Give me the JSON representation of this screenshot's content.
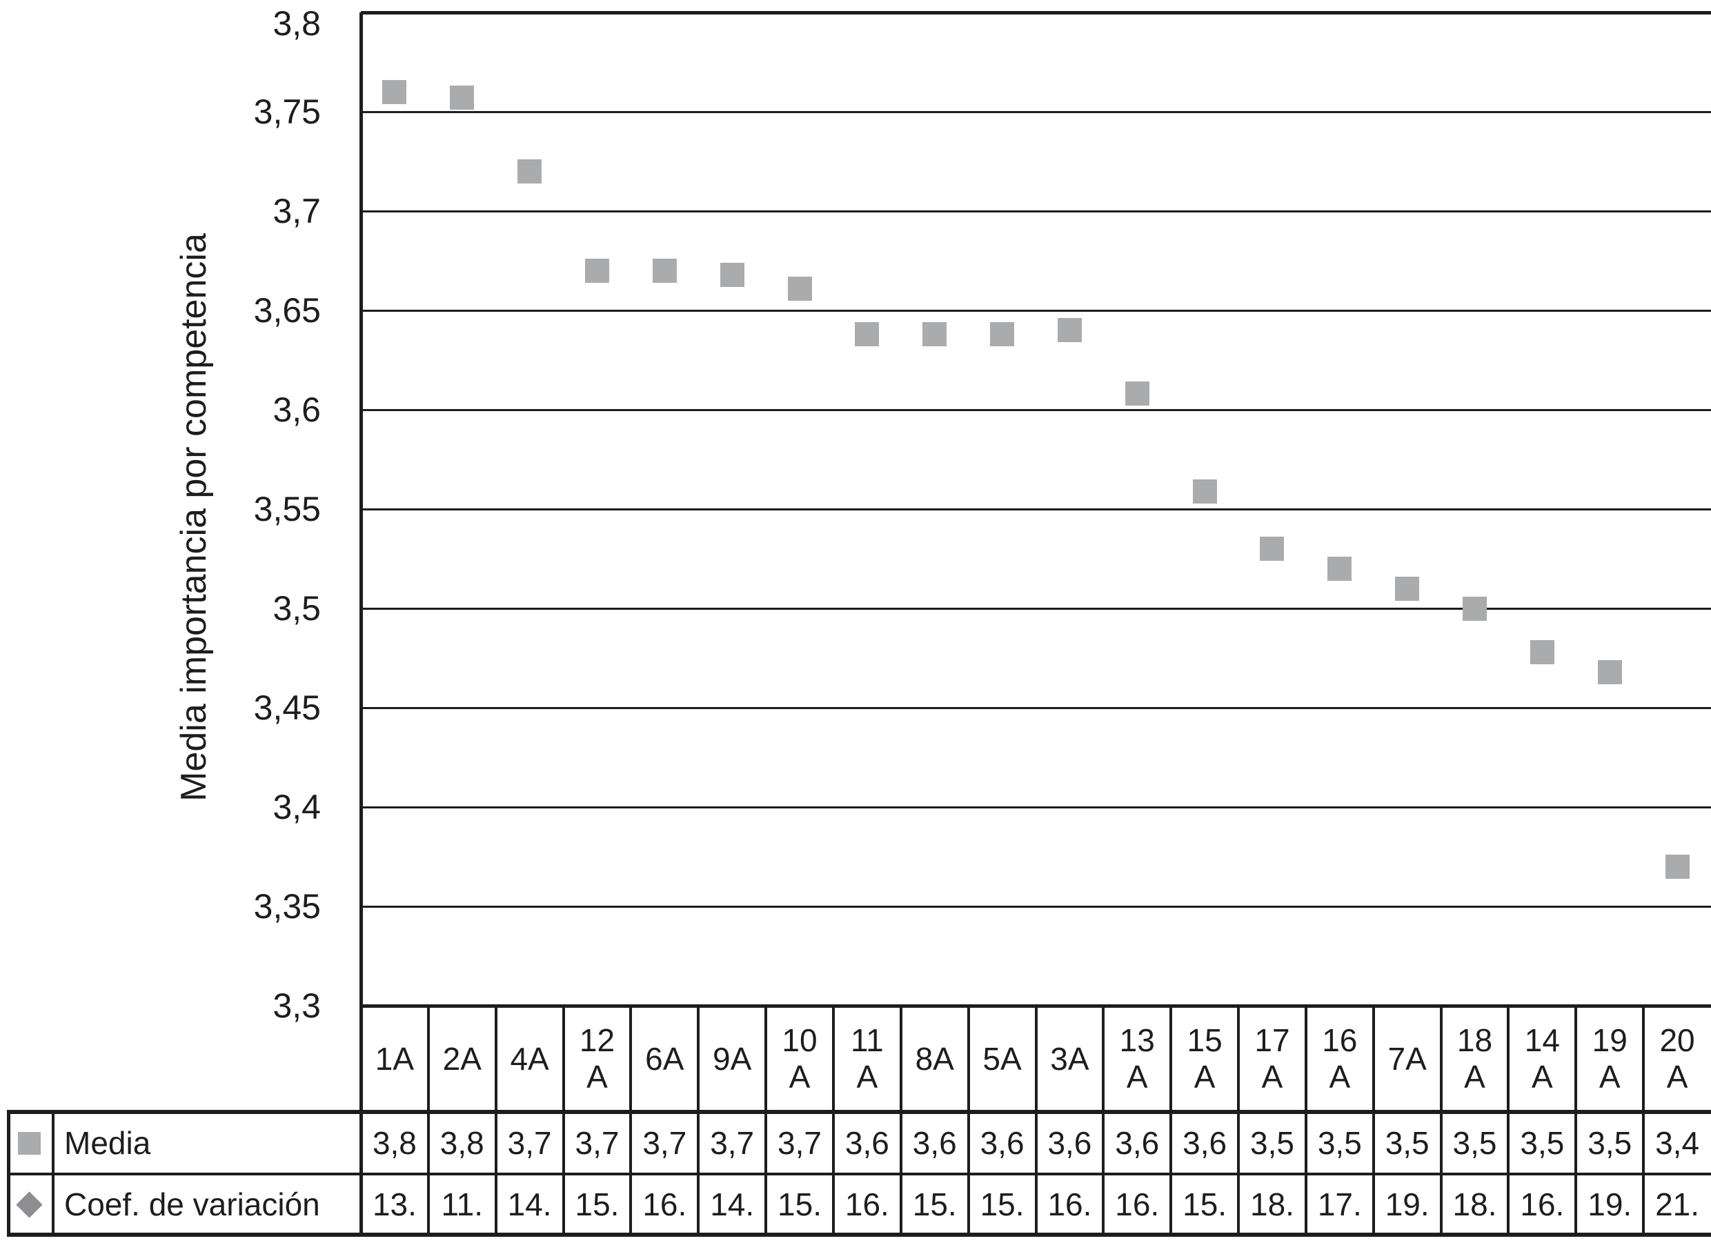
{
  "colors": {
    "line": "#1d1d1d",
    "text": "#1d1d1d",
    "square_marker": "#a9abad",
    "diamond_marker": "#8c8e91"
  },
  "y_axis": {
    "title": "Media importancia por competencia",
    "tick_labels": [
      "3,8",
      "3,75",
      "3,7",
      "3,65",
      "3,6",
      "3,55",
      "3,5",
      "3,45",
      "3,4",
      "3,35",
      "3,3"
    ]
  },
  "legend": {
    "media_label": "Media",
    "coef_label": "Coef. de variación"
  },
  "chart_data": {
    "type": "scatter",
    "title": "",
    "xlabel": "",
    "ylabel": "Media importancia por competencia",
    "ylim": [
      3.3,
      3.8
    ],
    "ytick_step": 0.05,
    "ytick_labels": [
      "3,8",
      "3,75",
      "3,7",
      "3,65",
      "3,6",
      "3,55",
      "3,5",
      "3,45",
      "3,4",
      "3,35",
      "3,3"
    ],
    "grid": "horizontal-only",
    "legend_position": "bottom-left-of-table",
    "categories": [
      "1A",
      "2A",
      "4A",
      "12\nA",
      "6A",
      "9A",
      "10\nA",
      "11\nA",
      "8A",
      "5A",
      "3A",
      "13\nA",
      "15\nA",
      "17\nA",
      "16\nA",
      "7A",
      "18\nA",
      "14\nA",
      "19\nA",
      "20\nA"
    ],
    "series": [
      {
        "name": "Media",
        "marker": "square",
        "color": "#a9abad",
        "values": [
          3.76,
          3.757,
          3.72,
          3.67,
          3.67,
          3.668,
          3.661,
          3.638,
          3.638,
          3.638,
          3.64,
          3.608,
          3.559,
          3.53,
          3.52,
          3.51,
          3.5,
          3.478,
          3.468,
          3.37
        ]
      }
    ],
    "table_rows": [
      {
        "label": "Media",
        "marker": "square",
        "marker_color": "#a9abad",
        "values": [
          "3,8",
          "3,8",
          "3,7",
          "3,7",
          "3,7",
          "3,7",
          "3,7",
          "3,6",
          "3,6",
          "3,6",
          "3,6",
          "3,6",
          "3,6",
          "3,5",
          "3,5",
          "3,5",
          "3,5",
          "3,5",
          "3,5",
          "3,4"
        ]
      },
      {
        "label": "Coef. de variación",
        "marker": "diamond",
        "marker_color": "#8c8e91",
        "values": [
          "13.",
          "11.",
          "14.",
          "15.",
          "16.",
          "14.",
          "15.",
          "16.",
          "15.",
          "15.",
          "16.",
          "16.",
          "15.",
          "18.",
          "17.",
          "19.",
          "18.",
          "16.",
          "19.",
          "21."
        ]
      }
    ]
  }
}
